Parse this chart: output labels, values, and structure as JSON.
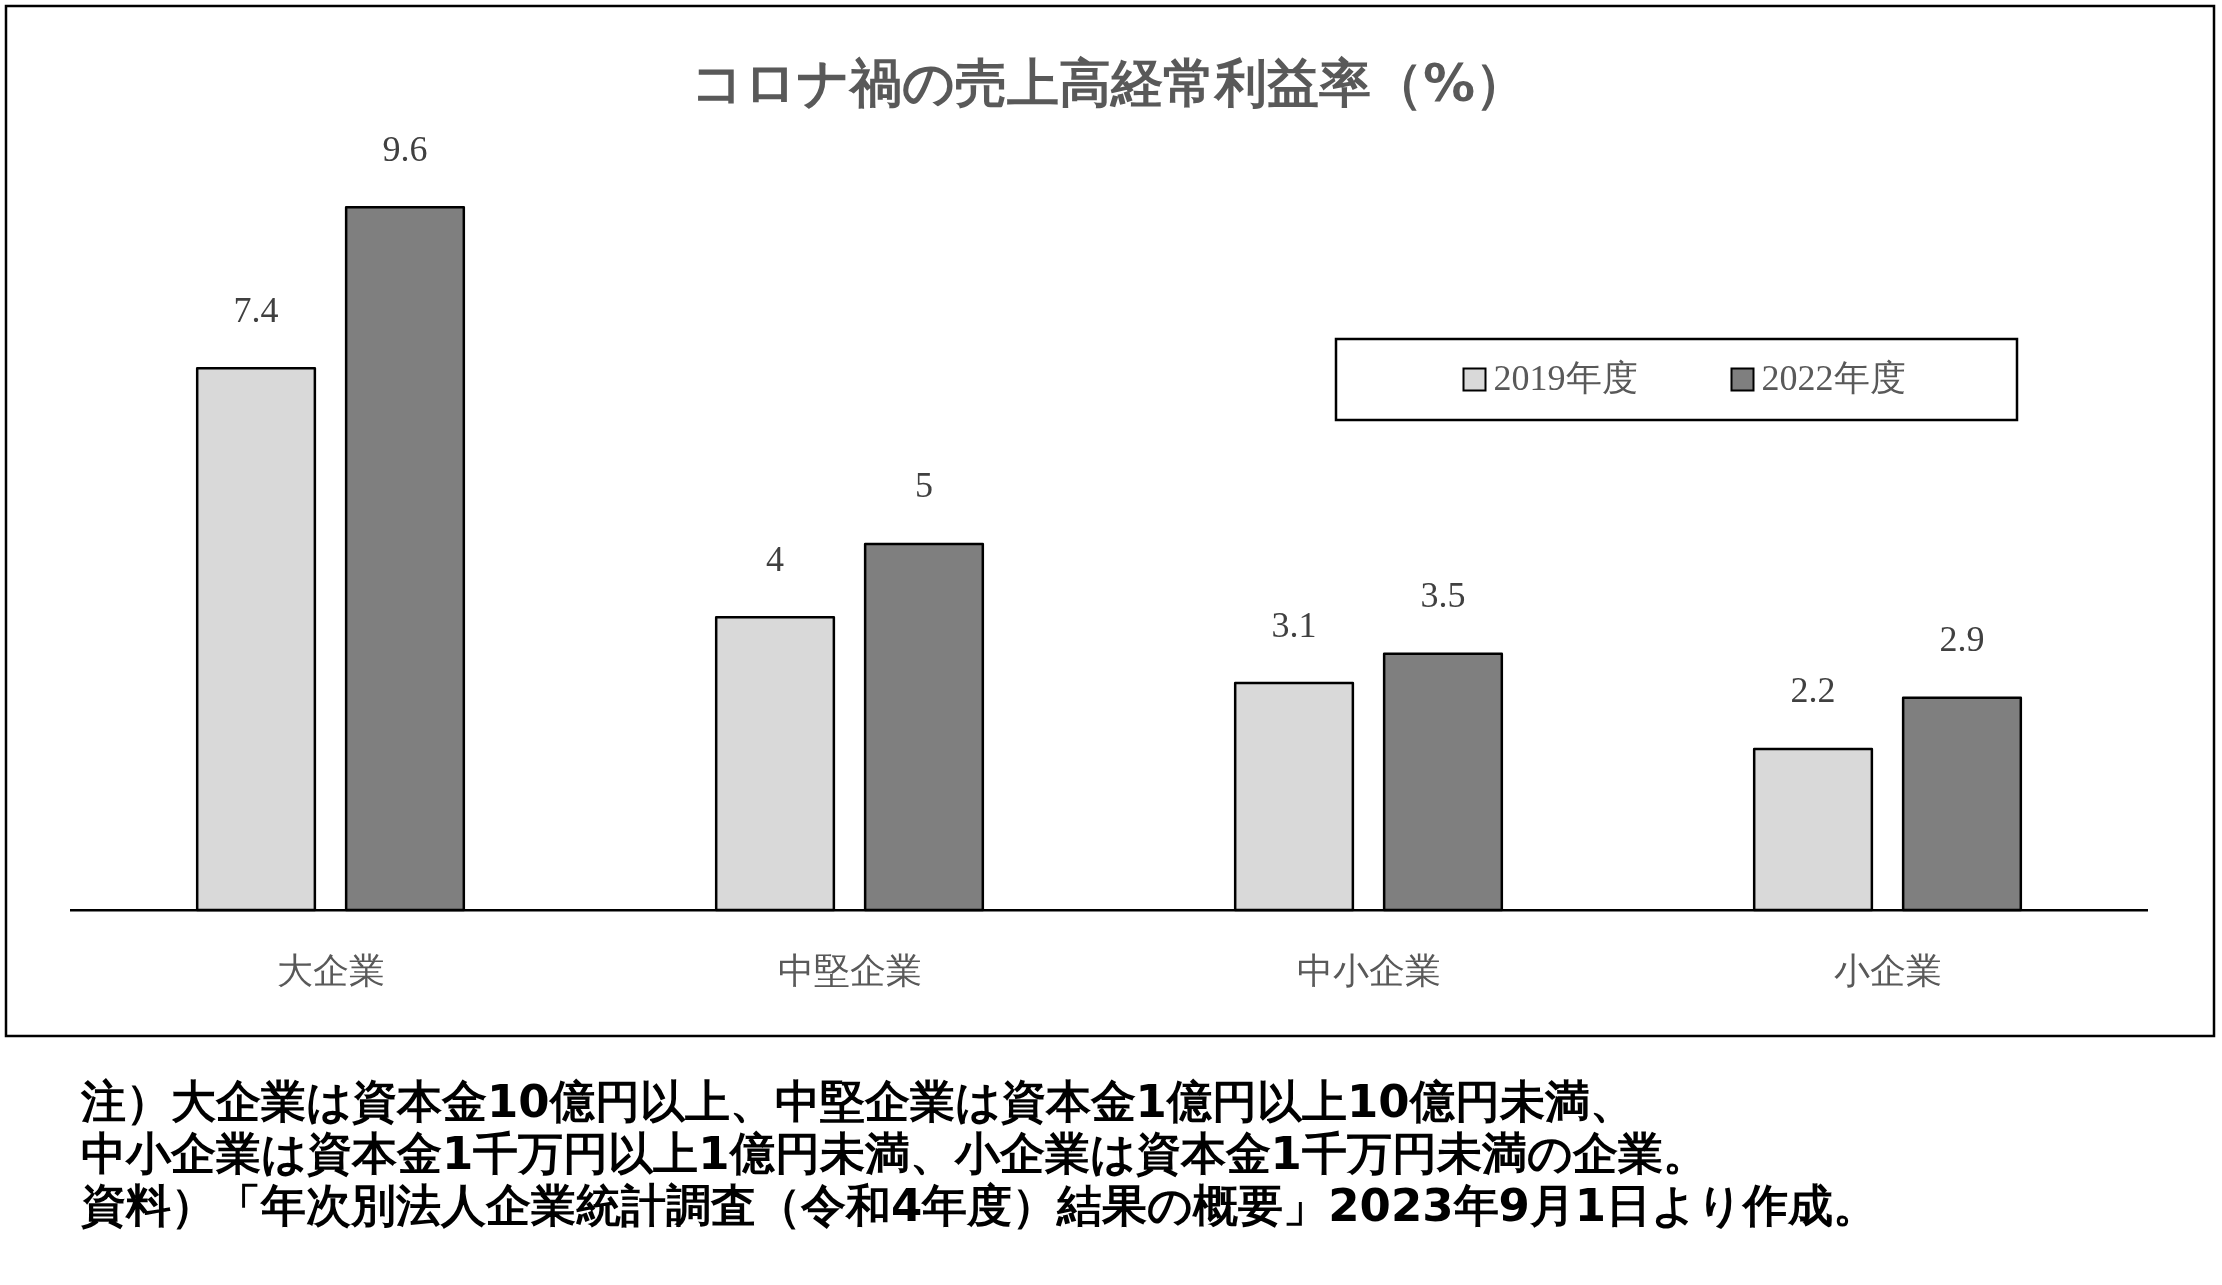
{
  "chart_data": {
    "type": "bar",
    "title": "コロナ禍の売上高経常利益率（%）",
    "categories": [
      "大企業",
      "中堅企業",
      "中小企業",
      "小企業"
    ],
    "series": [
      {
        "name": "2019年度",
        "color": "#d9d9d9",
        "values": [
          7.4,
          4,
          3.1,
          2.2
        ]
      },
      {
        "name": "2022年度",
        "color": "#7f7f7f",
        "values": [
          9.6,
          5,
          3.5,
          2.9
        ]
      }
    ],
    "data_labels": true,
    "legend": "top right",
    "annotations": [
      "注）大企業は資本金10億円以上、中堅企業は資本金1億円以上10億円未満、",
      "中小企業は資本金1千万円以上1億円未満、小企業は資本金1千万円未満の企業。",
      "資料）「年次別法人企業統計調査（令和4年度）結果の概要」2023年9月1日より作成。"
    ]
  }
}
